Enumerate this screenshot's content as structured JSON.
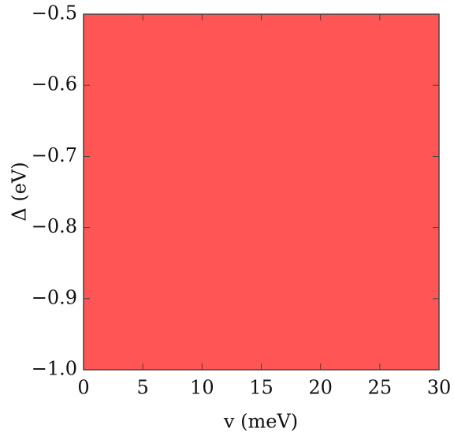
{
  "chart_data": {
    "type": "region",
    "xlabel": "v (meV)",
    "ylabel": "Δ (eV)",
    "region": {
      "x": [
        0,
        30
      ],
      "y": [
        -1.0,
        -0.5
      ]
    },
    "color": "#ff5555",
    "xlim": [
      0,
      30
    ],
    "xticks": [
      0,
      5,
      10,
      15,
      20,
      25,
      30
    ],
    "ylim": [
      -1.0,
      -0.5
    ],
    "yticks": [
      {
        "value": -1.0,
        "label": "−1.0"
      },
      {
        "value": -0.9,
        "label": "−0.9"
      },
      {
        "value": -0.8,
        "label": "−0.8"
      },
      {
        "value": -0.7,
        "label": "−0.7"
      },
      {
        "value": -0.6,
        "label": "−0.6"
      },
      {
        "value": -0.5,
        "label": "−0.5"
      }
    ],
    "grid": false
  }
}
